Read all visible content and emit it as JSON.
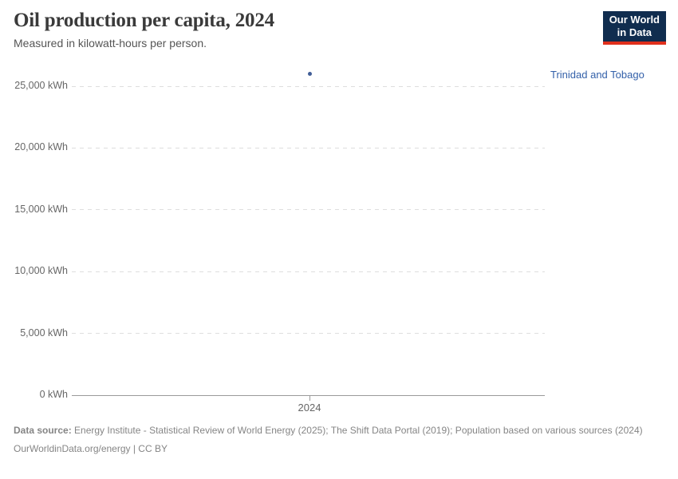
{
  "header": {
    "title": "Oil production per capita, 2024",
    "subtitle": "Measured in kilowatt-hours per person.",
    "logo_line1": "Our World",
    "logo_line2": "in Data"
  },
  "chart_data": {
    "type": "scatter",
    "title": "Oil production per capita, 2024",
    "subtitle": "Measured in kilowatt-hours per person.",
    "unit": "kWh",
    "x": [
      2024
    ],
    "series": [
      {
        "name": "Trinidad and Tobago",
        "values": [
          26000
        ],
        "color": "#415e97"
      }
    ],
    "xticks": [
      {
        "value": 2024,
        "label": "2024"
      }
    ],
    "yticks": [
      {
        "value": 0,
        "label": "0 kWh"
      },
      {
        "value": 5000,
        "label": "5,000 kWh"
      },
      {
        "value": 10000,
        "label": "10,000 kWh"
      },
      {
        "value": 15000,
        "label": "15,000 kWh"
      },
      {
        "value": 20000,
        "label": "20,000 kWh"
      },
      {
        "value": 25000,
        "label": "25,000 kWh"
      }
    ],
    "ylim": [
      0,
      26500
    ],
    "xlabel": "",
    "ylabel": "",
    "grid": "horizontal-dashed",
    "legend": "entity label right of plot"
  },
  "colors": {
    "accent_blue": "#3360a9",
    "dot_blue": "#415e97",
    "grid": "#dedede",
    "axis": "#9a9a9a",
    "logo_bg": "#102d4f",
    "logo_red": "#e0301c"
  },
  "footer": {
    "source_label": "Data source:",
    "source_text": " Energy Institute - Statistical Review of World Energy (2025); The Shift Data Portal (2019); Population based on various sources (2024)",
    "license_line": "OurWorldinData.org/energy | CC BY"
  }
}
